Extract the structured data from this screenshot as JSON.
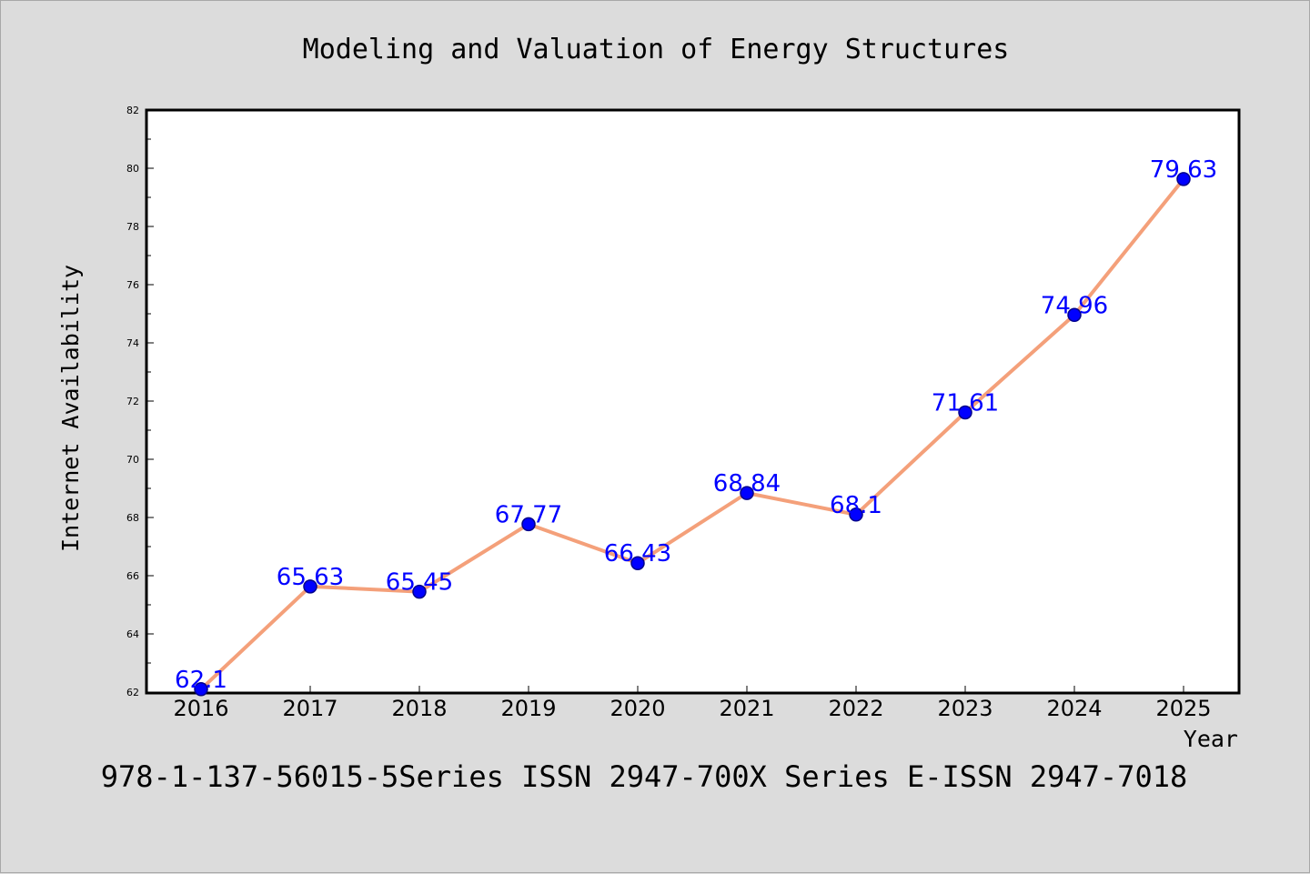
{
  "chart_data": {
    "type": "line",
    "title": "Modeling and Valuation of Energy Structures",
    "xlabel": "Year",
    "ylabel": "Internet Availability",
    "categories": [
      "2016",
      "2017",
      "2018",
      "2019",
      "2020",
      "2021",
      "2022",
      "2023",
      "2024",
      "2025"
    ],
    "series": [
      {
        "values": [
          62.1,
          65.63,
          65.45,
          67.77,
          66.43,
          68.84,
          68.1,
          71.61,
          74.96,
          79.63
        ],
        "labels": [
          "62.1",
          "65.63",
          "65.45",
          "67.77",
          "66.43",
          "68.84",
          "68.1",
          "71.61",
          "74.96",
          "79.63"
        ]
      }
    ],
    "ylim": [
      62,
      82
    ],
    "yticks": [
      62,
      64,
      66,
      68,
      70,
      72,
      74,
      76,
      78,
      80,
      82
    ],
    "grid": false,
    "legend": "none",
    "colors": {
      "line": "#f4a07a",
      "marker": "#0000ff",
      "marker_edge": "#00008b",
      "data_label": "#0000ff",
      "plot_background": "#ffffff",
      "figure_background": "#dcdcdc"
    }
  },
  "footer": {
    "text": "978-1-137-56015-5Series ISSN 2947-700X Series E-ISSN 2947-7018"
  }
}
